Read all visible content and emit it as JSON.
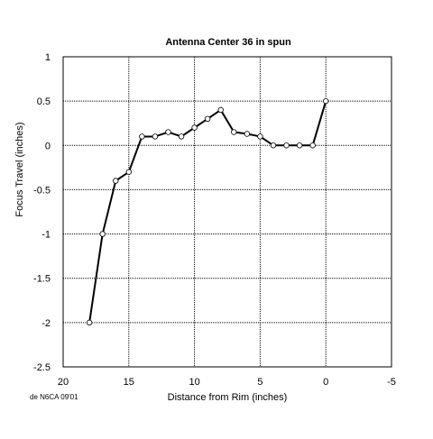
{
  "chart_data": {
    "type": "line",
    "title": "Antenna Center 36 in spun",
    "xlabel": "Distance from Rim (inches)",
    "ylabel": "Focus Travel (inches)",
    "xlim": [
      20,
      -5
    ],
    "ylim": [
      -2.5,
      1
    ],
    "x_reversed": true,
    "grid": true,
    "x_ticks": [
      "20",
      "15",
      "10",
      "5",
      "0",
      "-5"
    ],
    "y_ticks": [
      "1",
      "0.5",
      "0",
      "-0.5",
      "-1",
      "-1.5",
      "-2",
      "-2.5"
    ],
    "series": [
      {
        "marker": "circle",
        "points": [
          {
            "x": 18,
            "y": -2.0
          },
          {
            "x": 17,
            "y": -1.0
          },
          {
            "x": 16,
            "y": -0.4
          },
          {
            "x": 15,
            "y": -0.3
          },
          {
            "x": 14,
            "y": 0.1
          },
          {
            "x": 13,
            "y": 0.1
          },
          {
            "x": 12,
            "y": 0.15
          },
          {
            "x": 11,
            "y": 0.1
          },
          {
            "x": 10,
            "y": 0.2
          },
          {
            "x": 9,
            "y": 0.3
          },
          {
            "x": 8,
            "y": 0.4
          },
          {
            "x": 7,
            "y": 0.15
          },
          {
            "x": 6,
            "y": 0.13
          },
          {
            "x": 5,
            "y": 0.1
          },
          {
            "x": 4,
            "y": 0.0
          },
          {
            "x": 3,
            "y": 0.0
          },
          {
            "x": 2,
            "y": 0.0
          },
          {
            "x": 1,
            "y": 0.0
          },
          {
            "x": 0,
            "y": 0.5
          }
        ]
      }
    ],
    "annotation": "de N6CA 09'01"
  }
}
